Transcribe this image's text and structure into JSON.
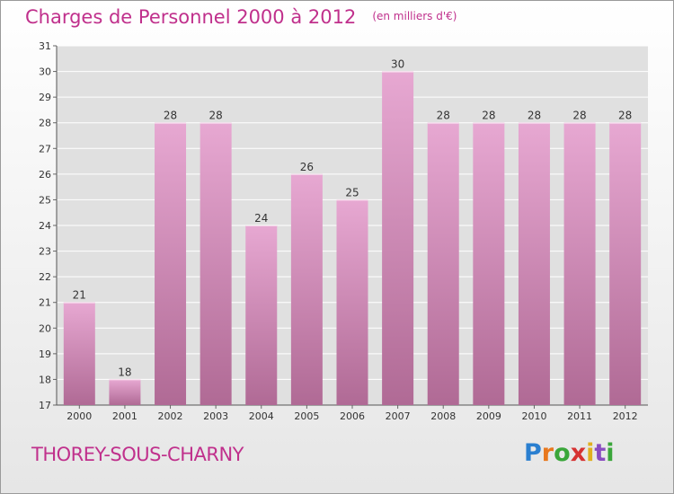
{
  "header": {
    "title": "Charges de Personnel 2000 à 2012",
    "subtitle": "(en milliers d'€)"
  },
  "footer": {
    "commune": "THOREY-SOUS-CHARNY",
    "logo": "Proxiti"
  },
  "colors": {
    "title": "#c0308c",
    "bar_top": "#e7a8d2",
    "bar_bottom": "#b06a95",
    "plot_background": "#e0e0e0"
  },
  "chart_data": {
    "type": "bar",
    "categories": [
      "2000",
      "2001",
      "2002",
      "2003",
      "2004",
      "2005",
      "2006",
      "2007",
      "2008",
      "2009",
      "2010",
      "2011",
      "2012"
    ],
    "values": [
      21,
      18,
      28,
      28,
      24,
      26,
      25,
      30,
      28,
      28,
      28,
      28,
      28
    ],
    "ylim": [
      17,
      31
    ],
    "yticks": [
      17,
      18,
      19,
      20,
      21,
      22,
      23,
      24,
      25,
      26,
      27,
      28,
      29,
      30,
      31
    ],
    "grid": true,
    "title": "Charges de Personnel 2000 à 2012",
    "ylabel": "",
    "xlabel": ""
  }
}
